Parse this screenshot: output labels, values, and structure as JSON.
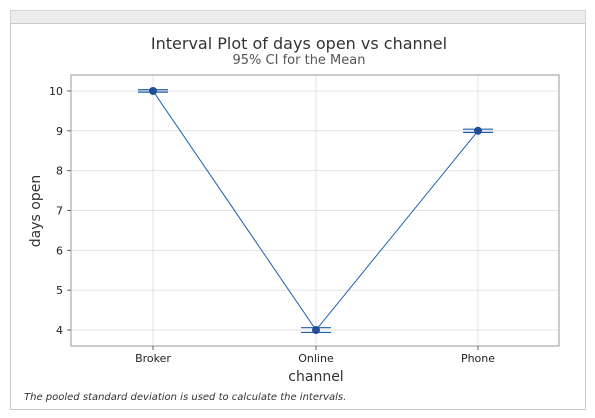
{
  "chart_data": {
    "type": "interval",
    "title": "Interval Plot of days open vs channel",
    "subtitle": "95% CI for the Mean",
    "xlabel": "channel",
    "ylabel": "days open",
    "categories": [
      "Broker",
      "Online",
      "Phone"
    ],
    "means": [
      10,
      4,
      9
    ],
    "ci_lower": [
      9.97,
      3.94,
      8.96
    ],
    "ci_upper": [
      10.03,
      4.06,
      9.04
    ],
    "ylim": [
      3.6,
      10.4
    ],
    "yticks": [
      4,
      5,
      6,
      7,
      8,
      9,
      10
    ],
    "grid": true,
    "footnote": "The pooled standard deviation is used to calculate the intervals.",
    "colors": {
      "line": "#1f5fa8",
      "point": "#1f4e96",
      "grid": "#e3e3e3",
      "plot_border": "#9a9a9a"
    }
  }
}
